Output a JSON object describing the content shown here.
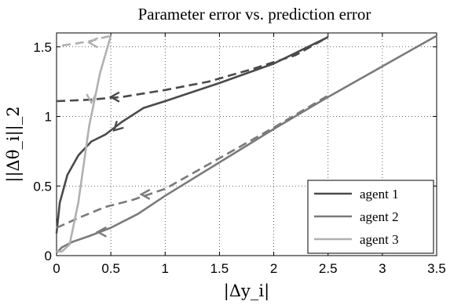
{
  "chart_data": {
    "type": "line",
    "title": "Parameter error vs. prediction error",
    "xlabel": "|Δy_i|",
    "ylabel": "||Δθ_i||_2",
    "xlim": [
      0,
      3.5
    ],
    "ylim": [
      0,
      1.6
    ],
    "x_ticks": [
      "0",
      "0.5",
      "1",
      "1.5",
      "2",
      "2.5",
      "3",
      "3.5"
    ],
    "y_ticks": [
      "0",
      "0.5",
      "1",
      "1.5"
    ],
    "grid": true,
    "legend_position": "bottom-right",
    "series": [
      {
        "name": "agent 1",
        "color": "#4a4a4a",
        "solid": [
          [
            0.0,
            0.16
          ],
          [
            0.03,
            0.38
          ],
          [
            0.1,
            0.58
          ],
          [
            0.2,
            0.72
          ],
          [
            0.32,
            0.82
          ],
          [
            0.45,
            0.87
          ],
          [
            0.6,
            0.96
          ],
          [
            0.8,
            1.06
          ],
          [
            1.0,
            1.11
          ],
          [
            1.5,
            1.24
          ],
          [
            2.0,
            1.38
          ],
          [
            2.5,
            1.57
          ]
        ],
        "dashed": [
          [
            0.0,
            1.11
          ],
          [
            0.3,
            1.12
          ],
          [
            0.6,
            1.14
          ],
          [
            1.0,
            1.19
          ],
          [
            1.4,
            1.25
          ],
          [
            1.8,
            1.34
          ],
          [
            2.2,
            1.44
          ],
          [
            2.5,
            1.57
          ]
        ],
        "arrows": [
          {
            "x": 0.53,
            "y": 0.9,
            "direction": "down-left"
          },
          {
            "x": 0.5,
            "y": 1.14,
            "direction": "left"
          }
        ]
      },
      {
        "name": "agent 2",
        "color": "#7a7a7a",
        "solid": [
          [
            0.0,
            0.02
          ],
          [
            0.05,
            0.06
          ],
          [
            0.15,
            0.1
          ],
          [
            0.3,
            0.14
          ],
          [
            0.4,
            0.17
          ],
          [
            0.5,
            0.2
          ],
          [
            0.75,
            0.3
          ],
          [
            1.0,
            0.43
          ],
          [
            1.5,
            0.67
          ],
          [
            2.0,
            0.91
          ],
          [
            2.5,
            1.14
          ],
          [
            3.0,
            1.36
          ],
          [
            3.5,
            1.58
          ]
        ],
        "dashed": [
          [
            0.0,
            0.2
          ],
          [
            0.2,
            0.27
          ],
          [
            0.45,
            0.35
          ],
          [
            0.7,
            0.4
          ],
          [
            1.0,
            0.48
          ],
          [
            1.5,
            0.7
          ],
          [
            2.0,
            0.92
          ],
          [
            2.5,
            1.15
          ]
        ],
        "arrows": [
          {
            "x": 0.38,
            "y": 0.17,
            "direction": "left"
          },
          {
            "x": 0.78,
            "y": 0.44,
            "direction": "left"
          }
        ]
      },
      {
        "name": "agent 3",
        "color": "#b0b0b0",
        "solid": [
          [
            0.0,
            0.03
          ],
          [
            0.05,
            0.03
          ],
          [
            0.12,
            0.08
          ],
          [
            0.2,
            0.38
          ],
          [
            0.3,
            0.93
          ],
          [
            0.4,
            1.31
          ],
          [
            0.5,
            1.58
          ]
        ],
        "dashed": [
          [
            0.05,
            1.51
          ],
          [
            0.15,
            1.52
          ],
          [
            0.3,
            1.54
          ],
          [
            0.5,
            1.58
          ]
        ],
        "arrows": [
          {
            "x": 0.32,
            "y": 1.1,
            "direction": "down"
          },
          {
            "x": 0.3,
            "y": 1.53,
            "direction": "left"
          }
        ]
      }
    ]
  }
}
